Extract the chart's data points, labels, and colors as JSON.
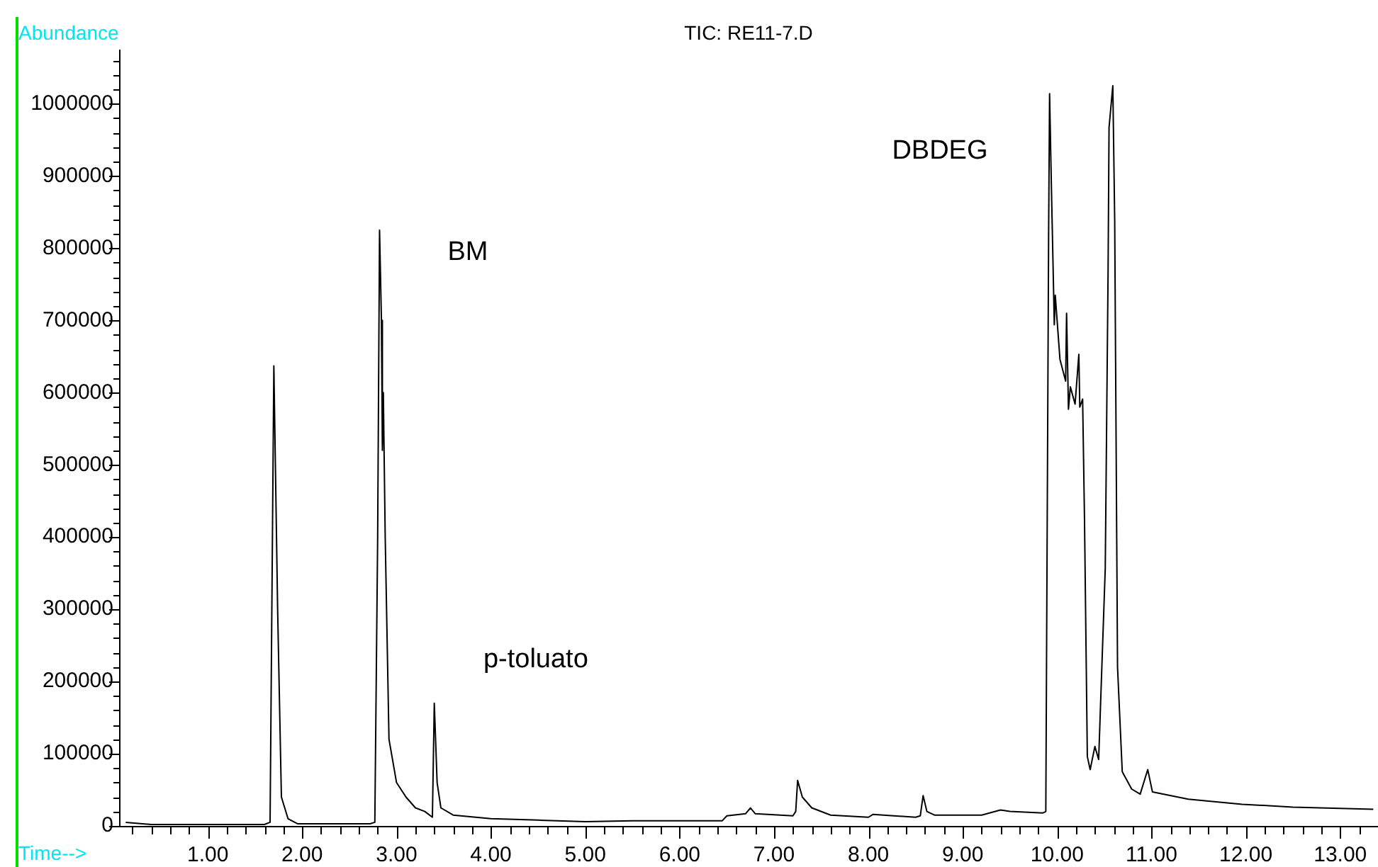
{
  "chart_data": {
    "type": "line",
    "title": "TIC: RE11-7.D",
    "xlabel": "Time-->",
    "ylabel": "Abundance",
    "annotations": [
      "BM",
      "p-toluato",
      "DBDEG"
    ],
    "x": [
      0.13,
      0.4,
      1.0,
      1.6,
      1.66,
      1.7,
      1.74,
      1.78,
      1.85,
      1.95,
      2.3,
      2.72,
      2.77,
      2.8,
      2.82,
      2.84,
      2.85,
      2.86,
      2.88,
      2.92,
      3.0,
      3.1,
      3.2,
      3.3,
      3.38,
      3.4,
      3.43,
      3.47,
      3.6,
      4.0,
      4.5,
      5.0,
      5.5,
      6.0,
      6.45,
      6.5,
      6.7,
      6.75,
      6.8,
      7.2,
      7.23,
      7.25,
      7.3,
      7.4,
      7.6,
      8.0,
      8.05,
      8.5,
      8.55,
      8.58,
      8.62,
      8.7,
      9.0,
      9.2,
      9.4,
      9.5,
      9.85,
      9.88,
      9.91,
      9.92,
      9.94,
      9.97,
      9.98,
      10.03,
      10.09,
      10.1,
      10.12,
      10.14,
      10.19,
      10.23,
      10.24,
      10.27,
      10.29,
      10.32,
      10.35,
      10.4,
      10.44,
      10.51,
      10.54,
      10.55,
      10.59,
      10.61,
      10.64,
      10.69,
      10.79,
      10.88,
      10.96,
      11.01,
      11.39,
      11.96,
      12.5,
      13.35
    ],
    "series": [
      {
        "color": "#000000",
        "values": [
          5000,
          2000,
          2000,
          2000,
          5000,
          637000,
          300000,
          40000,
          10000,
          3000,
          3000,
          3000,
          5000,
          400000,
          825000,
          700000,
          520000,
          600000,
          400000,
          120000,
          60000,
          40000,
          25000,
          20000,
          12000,
          170000,
          60000,
          25000,
          15000,
          10000,
          8000,
          6000,
          7000,
          7000,
          7000,
          14000,
          17000,
          25000,
          17000,
          14000,
          20000,
          63000,
          40000,
          25000,
          15000,
          12000,
          16000,
          12000,
          14000,
          42000,
          20000,
          15000,
          15000,
          15000,
          22000,
          20000,
          18000,
          20000,
          826000,
          1014000,
          880000,
          694000,
          735000,
          646000,
          616000,
          710000,
          577000,
          608000,
          584000,
          653000,
          580000,
          591000,
          425000,
          96000,
          78000,
          110000,
          92000,
          357000,
          769000,
          967000,
          1025000,
          839000,
          220000,
          75000,
          51000,
          44000,
          78000,
          47000,
          37000,
          30000,
          26000,
          23000
        ]
      }
    ],
    "marker": "none",
    "line_style": "solid",
    "grid": false,
    "legend": false,
    "xlim": [
      0.06,
      13.4
    ],
    "ylim": [
      0,
      1075000
    ],
    "xticks": [
      {
        "value": 0.2,
        "label": null
      },
      {
        "value": 0.4,
        "label": null
      },
      {
        "value": 0.6,
        "label": null
      },
      {
        "value": 0.8,
        "label": null
      },
      {
        "value": 1,
        "label": "1.00"
      },
      {
        "value": 1.2,
        "label": null
      },
      {
        "value": 1.4,
        "label": null
      },
      {
        "value": 1.6,
        "label": null
      },
      {
        "value": 1.8,
        "label": null
      },
      {
        "value": 2,
        "label": "2.00"
      },
      {
        "value": 2.2,
        "label": null
      },
      {
        "value": 2.4,
        "label": null
      },
      {
        "value": 2.6,
        "label": null
      },
      {
        "value": 2.8,
        "label": null
      },
      {
        "value": 3,
        "label": "3.00"
      },
      {
        "value": 3.2,
        "label": null
      },
      {
        "value": 3.4,
        "label": null
      },
      {
        "value": 3.6,
        "label": null
      },
      {
        "value": 3.8,
        "label": null
      },
      {
        "value": 4,
        "label": "4.00"
      },
      {
        "value": 4.2,
        "label": null
      },
      {
        "value": 4.4,
        "label": null
      },
      {
        "value": 4.6,
        "label": null
      },
      {
        "value": 4.8,
        "label": null
      },
      {
        "value": 5,
        "label": "5.00"
      },
      {
        "value": 5.2,
        "label": null
      },
      {
        "value": 5.4,
        "label": null
      },
      {
        "value": 5.6,
        "label": null
      },
      {
        "value": 5.8,
        "label": null
      },
      {
        "value": 6,
        "label": "6.00"
      },
      {
        "value": 6.2,
        "label": null
      },
      {
        "value": 6.4,
        "label": null
      },
      {
        "value": 6.6,
        "label": null
      },
      {
        "value": 6.8,
        "label": null
      },
      {
        "value": 7,
        "label": "7.00"
      },
      {
        "value": 7.2,
        "label": null
      },
      {
        "value": 7.4,
        "label": null
      },
      {
        "value": 7.6,
        "label": null
      },
      {
        "value": 7.8,
        "label": null
      },
      {
        "value": 8,
        "label": "8.00"
      },
      {
        "value": 8.2,
        "label": null
      },
      {
        "value": 8.4,
        "label": null
      },
      {
        "value": 8.6,
        "label": null
      },
      {
        "value": 8.8,
        "label": null
      },
      {
        "value": 9,
        "label": "9.00"
      },
      {
        "value": 9.2,
        "label": null
      },
      {
        "value": 9.4,
        "label": null
      },
      {
        "value": 9.6,
        "label": null
      },
      {
        "value": 9.8,
        "label": null
      },
      {
        "value": 10,
        "label": "10.00"
      },
      {
        "value": 10.2,
        "label": null
      },
      {
        "value": 10.4,
        "label": null
      },
      {
        "value": 10.6,
        "label": null
      },
      {
        "value": 10.8,
        "label": null
      },
      {
        "value": 11,
        "label": "11.00"
      },
      {
        "value": 11.2,
        "label": null
      },
      {
        "value": 11.4,
        "label": null
      },
      {
        "value": 11.6,
        "label": null
      },
      {
        "value": 11.8,
        "label": null
      },
      {
        "value": 12,
        "label": "12.00"
      },
      {
        "value": 12.2,
        "label": null
      },
      {
        "value": 12.4,
        "label": null
      },
      {
        "value": 12.6,
        "label": null
      },
      {
        "value": 12.8,
        "label": null
      },
      {
        "value": 13,
        "label": "13.00"
      },
      {
        "value": 13.2,
        "label": null
      }
    ],
    "yticks": [
      0,
      {
        "value": 20000,
        "label": null
      },
      {
        "value": 40000,
        "label": null
      },
      {
        "value": 60000,
        "label": null
      },
      {
        "value": 80000,
        "label": null
      },
      100000,
      {
        "value": 120000,
        "label": null
      },
      {
        "value": 140000,
        "label": null
      },
      {
        "value": 160000,
        "label": null
      },
      {
        "value": 180000,
        "label": null
      },
      200000,
      {
        "value": 220000,
        "label": null
      },
      {
        "value": 240000,
        "label": null
      },
      {
        "value": 260000,
        "label": null
      },
      {
        "value": 280000,
        "label": null
      },
      300000,
      {
        "value": 320000,
        "label": null
      },
      {
        "value": 340000,
        "label": null
      },
      {
        "value": 360000,
        "label": null
      },
      {
        "value": 380000,
        "label": null
      },
      400000,
      {
        "value": 420000,
        "label": null
      },
      {
        "value": 440000,
        "label": null
      },
      {
        "value": 460000,
        "label": null
      },
      {
        "value": 480000,
        "label": null
      },
      500000,
      {
        "value": 520000,
        "label": null
      },
      {
        "value": 540000,
        "label": null
      },
      {
        "value": 560000,
        "label": null
      },
      {
        "value": 580000,
        "label": null
      },
      600000,
      {
        "value": 620000,
        "label": null
      },
      {
        "value": 640000,
        "label": null
      },
      {
        "value": 660000,
        "label": null
      },
      {
        "value": 680000,
        "label": null
      },
      700000,
      {
        "value": 720000,
        "label": null
      },
      {
        "value": 740000,
        "label": null
      },
      {
        "value": 760000,
        "label": null
      },
      {
        "value": 780000,
        "label": null
      },
      800000,
      {
        "value": 820000,
        "label": null
      },
      {
        "value": 840000,
        "label": null
      },
      {
        "value": 860000,
        "label": null
      },
      {
        "value": 880000,
        "label": null
      },
      900000,
      {
        "value": 920000,
        "label": null
      },
      {
        "value": 940000,
        "label": null
      },
      {
        "value": 960000,
        "label": null
      },
      {
        "value": 980000,
        "label": null
      },
      1000000,
      {
        "value": 1020000,
        "label": null
      },
      {
        "value": 1040000,
        "label": null
      },
      {
        "value": 1060000,
        "label": null
      }
    ]
  }
}
